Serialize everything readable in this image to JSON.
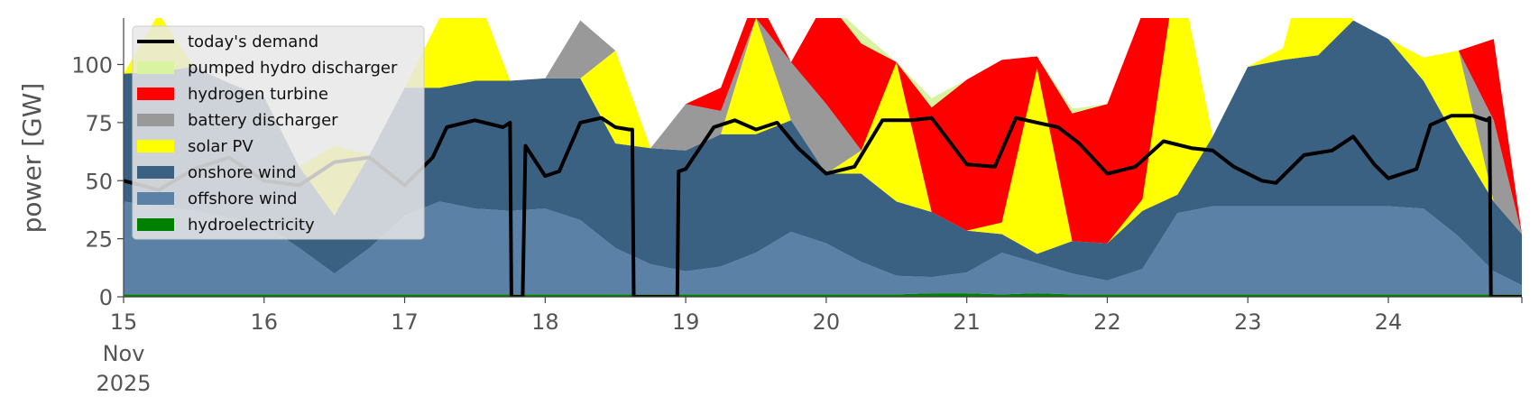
{
  "chart_data": {
    "type": "area",
    "ylabel": "power [GW]",
    "xlabel": "",
    "ylim": [
      0,
      120
    ],
    "yticks": [
      0,
      25,
      50,
      75,
      100
    ],
    "xlim": [
      15,
      24.95
    ],
    "xticks": [
      {
        "value": 15,
        "label": "15",
        "sub1": "Nov",
        "sub2": "2025"
      },
      {
        "value": 16,
        "label": "16"
      },
      {
        "value": 17,
        "label": "17"
      },
      {
        "value": 18,
        "label": "18"
      },
      {
        "value": 19,
        "label": "19"
      },
      {
        "value": 20,
        "label": "20"
      },
      {
        "value": 21,
        "label": "21"
      },
      {
        "value": 22,
        "label": "22"
      },
      {
        "value": 23,
        "label": "23"
      },
      {
        "value": 24,
        "label": "24"
      }
    ],
    "legend_position": "top-left",
    "x": [
      15.0,
      15.25,
      15.5,
      15.75,
      16.0,
      16.25,
      16.5,
      16.75,
      17.0,
      17.25,
      17.5,
      17.75,
      18.0,
      18.25,
      18.5,
      18.75,
      19.0,
      19.25,
      19.5,
      19.75,
      20.0,
      20.25,
      20.5,
      20.75,
      21.0,
      21.25,
      21.5,
      21.75,
      22.0,
      22.25,
      22.5,
      22.75,
      23.0,
      23.25,
      23.5,
      23.75,
      24.0,
      24.25,
      24.5,
      24.75,
      24.95
    ],
    "series": [
      {
        "name": "hydroelectricity",
        "color": "#008000",
        "values": [
          1,
          1,
          1,
          1,
          1,
          1,
          1,
          1,
          1,
          1,
          1,
          1,
          1,
          1,
          1,
          1,
          1,
          1,
          1,
          1,
          1,
          1,
          1,
          1.5,
          1.5,
          1,
          1.5,
          1,
          1,
          1,
          1,
          1,
          1,
          1,
          1,
          1,
          1,
          1,
          1,
          1,
          1
        ]
      },
      {
        "name": "offshore wind",
        "color": "#5b82a6",
        "values": [
          40,
          38,
          36,
          33,
          30,
          20,
          9,
          20,
          34,
          40,
          37,
          36,
          37,
          32,
          20,
          13,
          10,
          12,
          18,
          27,
          22,
          14,
          8,
          7,
          9,
          18,
          13,
          9,
          6,
          11,
          35,
          38,
          38,
          38,
          38,
          38,
          38,
          37,
          25,
          10,
          4
        ]
      },
      {
        "name": "onshore wind",
        "color": "#3b6182",
        "values": [
          55,
          58,
          62,
          58,
          55,
          35,
          25,
          40,
          55,
          49,
          55,
          56,
          56,
          61,
          45,
          50,
          52,
          57,
          51,
          48,
          30,
          38,
          32,
          28,
          18,
          8,
          4,
          14,
          16,
          25,
          8,
          30,
          60,
          63,
          65,
          80,
          72,
          55,
          40,
          30,
          22
        ]
      },
      {
        "name": "solar PV",
        "color": "#ffff00",
        "values": [
          0,
          25,
          0,
          0,
          0,
          0,
          30,
          0,
          0,
          30,
          40,
          0,
          0,
          0,
          40,
          0,
          0,
          0,
          50,
          0,
          0,
          10,
          60,
          0,
          0,
          5,
          80,
          0,
          0,
          5,
          100,
          0,
          0,
          5,
          60,
          0,
          0,
          10,
          40,
          0,
          0
        ]
      },
      {
        "name": "battery discharger",
        "color": "#999999",
        "values": [
          0,
          0,
          0,
          0,
          0,
          0,
          0,
          0,
          0,
          0,
          0,
          0,
          0,
          25,
          0,
          0,
          20,
          10,
          0,
          25,
          30,
          0,
          0,
          0,
          0,
          0,
          0,
          0,
          0,
          0,
          0,
          0,
          0,
          0,
          0,
          0,
          0,
          0,
          0,
          35,
          0
        ]
      },
      {
        "name": "hydrogen turbine",
        "color": "#ff0000",
        "values": [
          0,
          0,
          0,
          0,
          0,
          0,
          0,
          0,
          0,
          0,
          0,
          0,
          0,
          0,
          0,
          0,
          0,
          10,
          10,
          0,
          45,
          46,
          0,
          45,
          65,
          70,
          5,
          55,
          60,
          80,
          0,
          0,
          0,
          0,
          0,
          0,
          0,
          0,
          0,
          35,
          0
        ]
      },
      {
        "name": "pumped hydro discharger",
        "color": "#d8f4a0",
        "values": [
          0,
          0,
          0,
          0,
          0,
          0,
          0,
          0,
          0,
          0,
          0,
          0,
          0,
          0,
          0,
          0,
          0,
          0,
          0,
          0,
          0,
          5,
          0,
          4,
          0,
          0,
          0,
          2,
          0,
          0,
          0,
          0,
          0,
          0,
          0,
          0,
          0,
          0,
          0,
          0,
          0
        ]
      }
    ],
    "demand": {
      "name": "today's demand",
      "color": "#000000",
      "x": [
        15.0,
        15.25,
        15.5,
        15.75,
        16.0,
        16.25,
        16.5,
        16.75,
        17.0,
        17.2,
        17.3,
        17.5,
        17.7,
        17.75,
        17.76,
        17.84,
        17.86,
        18.0,
        18.1,
        18.25,
        18.4,
        18.5,
        18.6,
        18.62,
        18.63,
        18.94,
        18.95,
        19.0,
        19.2,
        19.35,
        19.5,
        19.65,
        19.8,
        20.0,
        20.2,
        20.4,
        20.6,
        20.75,
        20.9,
        21.0,
        21.2,
        21.35,
        21.5,
        21.65,
        21.8,
        22.0,
        22.2,
        22.4,
        22.6,
        22.75,
        22.9,
        23.1,
        23.2,
        23.4,
        23.6,
        23.75,
        23.9,
        24.0,
        24.2,
        24.3,
        24.45,
        24.6,
        24.7,
        24.72,
        24.73,
        24.95
      ],
      "values": [
        50,
        46,
        55,
        60,
        50,
        48,
        58,
        60,
        48,
        60,
        73,
        76,
        73,
        75,
        0,
        0,
        65,
        52,
        54,
        75,
        77,
        73,
        72,
        72,
        0,
        0,
        54,
        55,
        73,
        76,
        72,
        75,
        64,
        53,
        56,
        76,
        76,
        77,
        65,
        57,
        56,
        77,
        75,
        73,
        66,
        53,
        56,
        67,
        64,
        63,
        56,
        50,
        49,
        61,
        63,
        69,
        57,
        51,
        55,
        74,
        78,
        78,
        76,
        77,
        0,
        0
      ]
    }
  },
  "legend": [
    {
      "key": "demand",
      "label": "today's demand",
      "color": "#000000",
      "type": "line"
    },
    {
      "key": "pumped",
      "label": "pumped hydro discharger",
      "color": "#d8f4a0",
      "type": "box"
    },
    {
      "key": "hydrogen",
      "label": "hydrogen turbine",
      "color": "#ff0000",
      "type": "box"
    },
    {
      "key": "battery",
      "label": "battery discharger",
      "color": "#999999",
      "type": "box"
    },
    {
      "key": "solar",
      "label": "solar PV",
      "color": "#ffff00",
      "type": "box"
    },
    {
      "key": "onshore",
      "label": "onshore wind",
      "color": "#3b6182",
      "type": "box"
    },
    {
      "key": "offshore",
      "label": "offshore wind",
      "color": "#5b82a6",
      "type": "box"
    },
    {
      "key": "hydro",
      "label": "hydroelectricity",
      "color": "#008000",
      "type": "box"
    }
  ]
}
